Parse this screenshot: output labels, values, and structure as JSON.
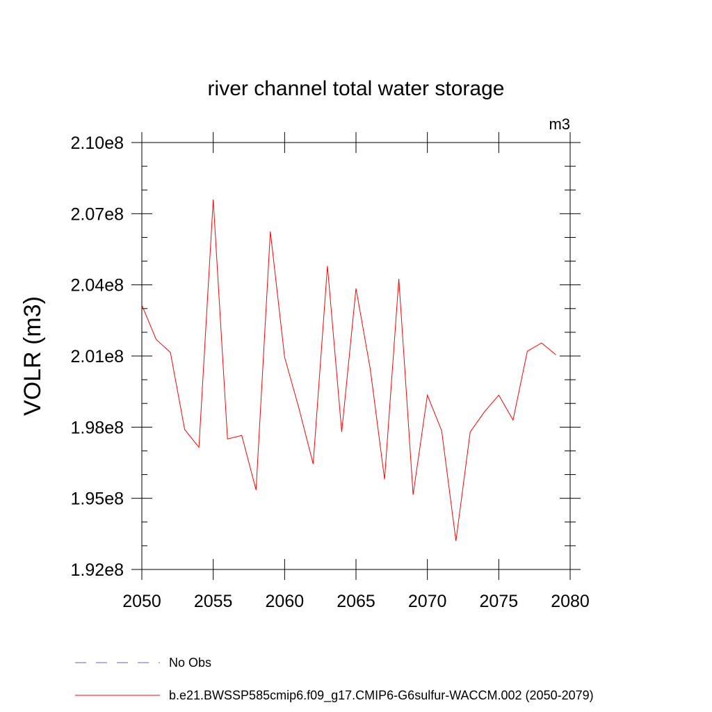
{
  "chart_data": {
    "type": "line",
    "title": "river channel total water storage",
    "units_label": "m3",
    "xlabel": "",
    "ylabel": "VOLR  (m3)",
    "xlim": [
      2050,
      2080
    ],
    "ylim": [
      192000000,
      210000000
    ],
    "x_ticks": [
      2050,
      2055,
      2060,
      2065,
      2070,
      2075,
      2080
    ],
    "x_tick_labels": [
      "2050",
      "2055",
      "2060",
      "2065",
      "2070",
      "2075",
      "2080"
    ],
    "y_ticks": [
      192000000,
      195000000,
      198000000,
      201000000,
      204000000,
      207000000,
      210000000
    ],
    "y_tick_labels": [
      "1.92e8",
      "1.95e8",
      "1.98e8",
      "2.01e8",
      "2.04e8",
      "2.07e8",
      "2.10e8"
    ],
    "grid": false,
    "legend_position": "bottom",
    "series": [
      {
        "name": "No Obs",
        "color": "#6a5acd",
        "dash": "dashed",
        "x": [],
        "y": []
      },
      {
        "name": "b.e21.BWSSP585cmip6.f09_g17.CMIP6-G6sulfur-WACCM.002 (2050-2079)",
        "color": "#ff0000",
        "dash": "solid",
        "x": [
          2050,
          2051,
          2052,
          2053,
          2054,
          2055,
          2056,
          2057,
          2058,
          2059,
          2060,
          2061,
          2062,
          2063,
          2064,
          2065,
          2066,
          2067,
          2068,
          2069,
          2070,
          2071,
          2072,
          2073,
          2074,
          2075,
          2076,
          2077,
          2078,
          2079
        ],
        "y": [
          203150000,
          201700000,
          201150000,
          197900000,
          197150000,
          207600000,
          197500000,
          197650000,
          195350000,
          206250000,
          200950000,
          198800000,
          196450000,
          204800000,
          197800000,
          203850000,
          200450000,
          195800000,
          204250000,
          195150000,
          199350000,
          197850000,
          193200000,
          197800000,
          198650000,
          199350000,
          198300000,
          201200000,
          201550000,
          201050000
        ]
      }
    ]
  }
}
